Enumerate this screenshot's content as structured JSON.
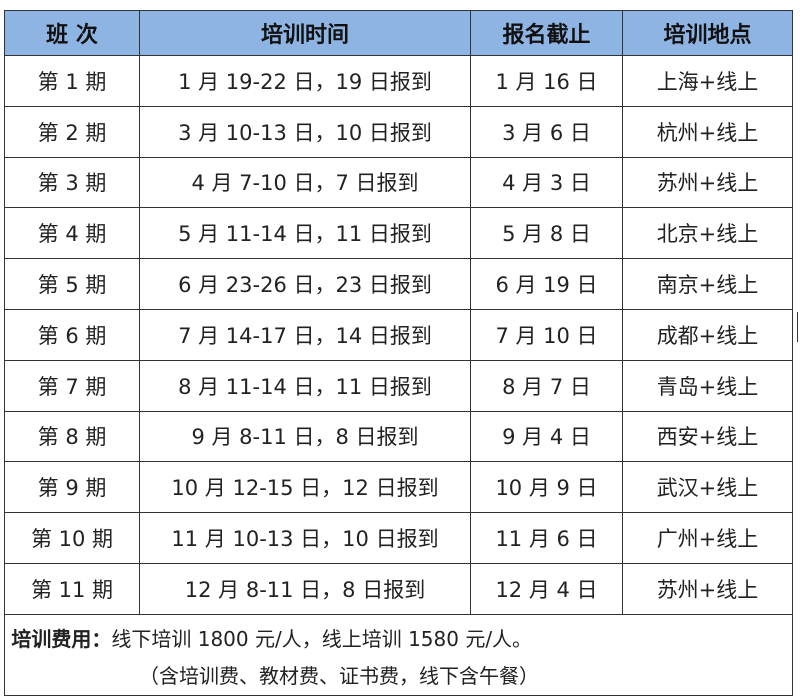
{
  "headers": [
    "班 次",
    "培训时间",
    "报名截止",
    "培训地点"
  ],
  "rows": [
    [
      "第 1 期",
      "1 月 19-22 日，19 日报到",
      "1 月 16 日",
      "上海+线上"
    ],
    [
      "第 2 期",
      "3 月 10-13 日，10 日报到",
      "3 月 6 日",
      "杭州+线上"
    ],
    [
      "第 3 期",
      "4 月 7-10 日，7 日报到",
      "4 月 3 日",
      "苏州+线上"
    ],
    [
      "第 4 期",
      "5 月 11-14 日，11 日报到",
      "5 月 8 日",
      "北京+线上"
    ],
    [
      "第 5 期",
      "6 月 23-26 日，23 日报到",
      "6 月 19 日",
      "南京+线上"
    ],
    [
      "第 6 期",
      "7 月 14-17 日，14 日报到",
      "7 月 10 日",
      "成都+线上"
    ],
    [
      "第 7 期",
      "8 月 11-14 日，11 日报到",
      "8 月 7 日",
      "青岛+线上"
    ],
    [
      "第 8 期",
      "9 月 8-11 日，8 日报到",
      "9 月 4 日",
      "西安+线上"
    ],
    [
      "第 9 期",
      "10 月 12-15 日，12 日报到",
      "10 月 9 日",
      "武汉+线上"
    ],
    [
      "第 10 期",
      "11 月 10-13 日，10 日报到",
      "11 月 6 日",
      "广州+线上"
    ],
    [
      "第 11 期",
      "12 月 8-11 日，8 日报到",
      "12 月 4 日",
      "苏州+线上"
    ]
  ],
  "footer": {
    "label": "培训费用：",
    "text": "线下培训 1800 元/人，线上培训 1580 元/人。",
    "note": "（含培训费、教材费、证书费，线下含午餐）"
  },
  "colors": {
    "header_bg": "#8db4e2",
    "border": "#333333"
  }
}
